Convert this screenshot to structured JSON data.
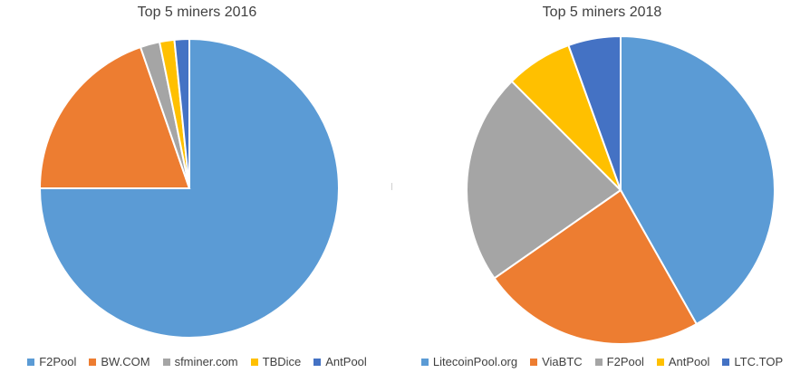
{
  "chart_data": [
    {
      "type": "pie",
      "title": "Top 5 miners 2016",
      "categories": [
        "F2Pool",
        "BW.COM",
        "sfminer.com",
        "TBDice",
        "AntPool"
      ],
      "values": [
        75,
        19.7,
        2.1,
        1.6,
        1.6
      ],
      "colors": [
        "#5B9BD5",
        "#ED7D31",
        "#A5A5A5",
        "#FFC000",
        "#4472C4"
      ],
      "legend": "bottom"
    },
    {
      "type": "pie",
      "title": "Top 5 miners 2018",
      "categories": [
        "LitecoinPool.org",
        "ViaBTC",
        "F2Pool",
        "AntPool",
        "LTC.TOP"
      ],
      "values": [
        41.8,
        23.5,
        22.2,
        7.0,
        5.5
      ],
      "colors": [
        "#5B9BD5",
        "#ED7D31",
        "#A5A5A5",
        "#FFC000",
        "#4472C4"
      ],
      "legend": "bottom"
    }
  ]
}
